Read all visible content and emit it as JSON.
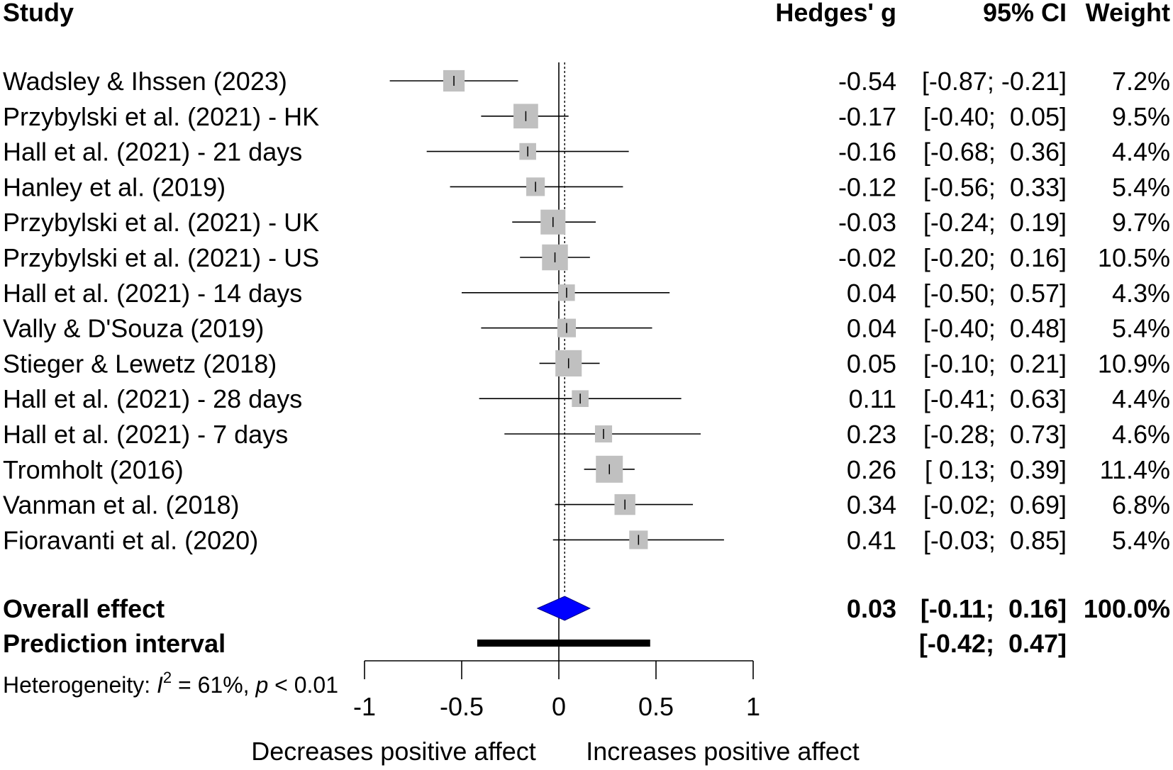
{
  "chart_data": {
    "type": "forest",
    "headers": {
      "study": "Study",
      "effect": "Hedges' g",
      "ci": "95% CI",
      "weight": "Weight"
    },
    "studies": [
      {
        "name": "Wadsley & Ihssen (2023)",
        "g": -0.54,
        "lo": -0.87,
        "hi": -0.21,
        "weight": 7.2,
        "g_text": "-0.54",
        "ci_text": "[-0.87; -0.21]",
        "weight_text": "7.2%"
      },
      {
        "name": "Przybylski et al. (2021) - HK",
        "g": -0.17,
        "lo": -0.4,
        "hi": 0.05,
        "weight": 9.5,
        "g_text": "-0.17",
        "ci_text": "[-0.40;  0.05]",
        "weight_text": "9.5%"
      },
      {
        "name": "Hall et al. (2021) - 21 days",
        "g": -0.16,
        "lo": -0.68,
        "hi": 0.36,
        "weight": 4.4,
        "g_text": "-0.16",
        "ci_text": "[-0.68;  0.36]",
        "weight_text": "4.4%"
      },
      {
        "name": "Hanley et al. (2019)",
        "g": -0.12,
        "lo": -0.56,
        "hi": 0.33,
        "weight": 5.4,
        "g_text": "-0.12",
        "ci_text": "[-0.56;  0.33]",
        "weight_text": "5.4%"
      },
      {
        "name": "Przybylski et al. (2021) - UK",
        "g": -0.03,
        "lo": -0.24,
        "hi": 0.19,
        "weight": 9.7,
        "g_text": "-0.03",
        "ci_text": "[-0.24;  0.19]",
        "weight_text": "9.7%"
      },
      {
        "name": "Przybylski et al. (2021) - US",
        "g": -0.02,
        "lo": -0.2,
        "hi": 0.16,
        "weight": 10.5,
        "g_text": "-0.02",
        "ci_text": "[-0.20;  0.16]",
        "weight_text": "10.5%"
      },
      {
        "name": "Hall et al. (2021) - 14 days",
        "g": 0.04,
        "lo": -0.5,
        "hi": 0.57,
        "weight": 4.3,
        "g_text": "0.04",
        "ci_text": "[-0.50;  0.57]",
        "weight_text": "4.3%"
      },
      {
        "name": "Vally & D'Souza (2019)",
        "g": 0.04,
        "lo": -0.4,
        "hi": 0.48,
        "weight": 5.4,
        "g_text": "0.04",
        "ci_text": "[-0.40;  0.48]",
        "weight_text": "5.4%"
      },
      {
        "name": "Stieger & Lewetz (2018)",
        "g": 0.05,
        "lo": -0.1,
        "hi": 0.21,
        "weight": 10.9,
        "g_text": "0.05",
        "ci_text": "[-0.10;  0.21]",
        "weight_text": "10.9%"
      },
      {
        "name": "Hall et al. (2021) - 28 days",
        "g": 0.11,
        "lo": -0.41,
        "hi": 0.63,
        "weight": 4.4,
        "g_text": "0.11",
        "ci_text": "[-0.41;  0.63]",
        "weight_text": "4.4%"
      },
      {
        "name": "Hall et al. (2021) - 7 days",
        "g": 0.23,
        "lo": -0.28,
        "hi": 0.73,
        "weight": 4.6,
        "g_text": "0.23",
        "ci_text": "[-0.28;  0.73]",
        "weight_text": "4.6%"
      },
      {
        "name": "Tromholt (2016)",
        "g": 0.26,
        "lo": 0.13,
        "hi": 0.39,
        "weight": 11.4,
        "g_text": "0.26",
        "ci_text": "[ 0.13;  0.39]",
        "weight_text": "11.4%"
      },
      {
        "name": "Vanman et al. (2018)",
        "g": 0.34,
        "lo": -0.02,
        "hi": 0.69,
        "weight": 6.8,
        "g_text": "0.34",
        "ci_text": "[-0.02;  0.69]",
        "weight_text": "6.8%"
      },
      {
        "name": "Fioravanti et al. (2020)",
        "g": 0.41,
        "lo": -0.03,
        "hi": 0.85,
        "weight": 5.4,
        "g_text": "0.41",
        "ci_text": "[-0.03;  0.85]",
        "weight_text": "5.4%"
      }
    ],
    "overall": {
      "label": "Overall effect",
      "g": 0.03,
      "lo": -0.11,
      "hi": 0.16,
      "g_text": "0.03",
      "ci_text": "[-0.11;  0.16]",
      "weight_text": "100.0%",
      "color": "#0000ff"
    },
    "prediction": {
      "label": "Prediction interval",
      "lo": -0.42,
      "hi": 0.47,
      "ci_text": "[-0.42;  0.47]"
    },
    "heterogeneity": {
      "prefix": "Heterogeneity: ",
      "i_sym": "I",
      "sup": "2",
      "middle": " = 61%, ",
      "p_sym": "p",
      "suffix": " < 0.01"
    },
    "axis": {
      "range": [
        -1,
        1
      ],
      "ticks": [
        -1,
        -0.5,
        0,
        0.5,
        1
      ],
      "tick_labels": [
        "-1",
        "-0.5",
        "0",
        "0.5",
        "1"
      ],
      "label_left": "Decreases positive affect",
      "label_right": "Increases positive affect"
    },
    "reference_line": 0,
    "summary_line": 0.03,
    "colors": {
      "box": "#c0c0c0",
      "line": "#000000",
      "diamond": "#0000ff"
    }
  }
}
